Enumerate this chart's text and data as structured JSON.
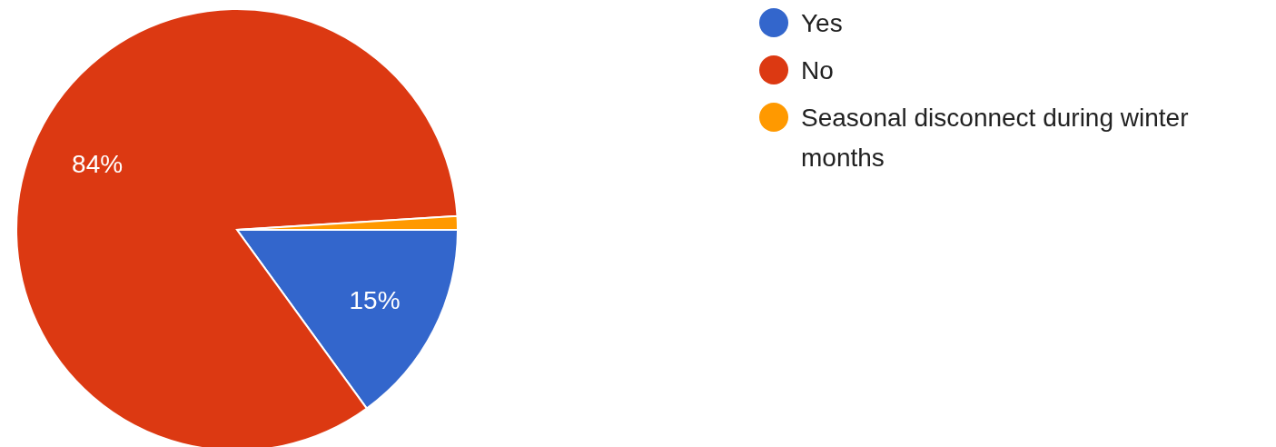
{
  "chart_data": {
    "type": "pie",
    "categories": [
      "Yes",
      "No",
      "Seasonal disconnect during winter months"
    ],
    "values": [
      15,
      84,
      1
    ],
    "colors": [
      "#3366cc",
      "#dc3912",
      "#ff9900"
    ],
    "value_labels": [
      "15%",
      "84%",
      null
    ],
    "legend": "top right"
  }
}
